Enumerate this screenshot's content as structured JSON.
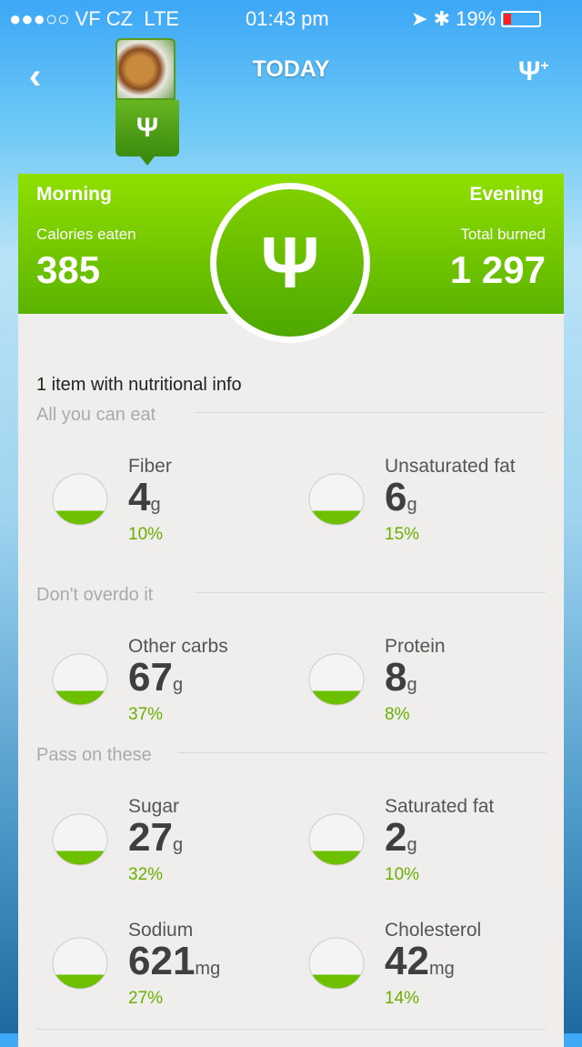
{
  "status": {
    "signal": "●●●○○ VF CZ",
    "network": "LTE",
    "time": "01:43 pm",
    "battery": "19%"
  },
  "nav": {
    "title": "TODAY",
    "back_icon": "chevron-left-icon",
    "add_meal_icon": "fork-knife-plus-icon"
  },
  "summary": {
    "left_label": "Morning",
    "right_label": "Evening",
    "calories_label": "Calories eaten",
    "calories": "385",
    "burned_label": "Total burned",
    "burned": "1 297"
  },
  "main": {
    "item_count": "1 item with nutritional info",
    "sections": [
      {
        "label": "All you can eat"
      },
      {
        "label": "Don't overdo it"
      },
      {
        "label": "Pass on these"
      }
    ],
    "nutrients": [
      {
        "name": "Fiber",
        "value": "4",
        "unit": "g",
        "pct": "10%",
        "icon": "apple-icon"
      },
      {
        "name": "Unsaturated fat",
        "value": "6",
        "unit": "g",
        "pct": "15%",
        "icon": "oil-drops-icon"
      },
      {
        "name": "Other carbs",
        "value": "67",
        "unit": "g",
        "pct": "37%",
        "icon": "bread-slices-icon"
      },
      {
        "name": "Protein",
        "value": "8",
        "unit": "g",
        "pct": "8%",
        "icon": "steak-icon"
      },
      {
        "name": "Sugar",
        "value": "27",
        "unit": "g",
        "pct": "32%",
        "icon": "sugar-cubes-icon"
      },
      {
        "name": "Saturated fat",
        "value": "2",
        "unit": "g",
        "pct": "10%",
        "icon": "butter-icon"
      },
      {
        "name": "Sodium",
        "value": "621",
        "unit": "mg",
        "pct": "27%",
        "icon": "salt-shaker-icon"
      },
      {
        "name": "Cholesterol",
        "value": "42",
        "unit": "mg",
        "pct": "14%",
        "icon": "eggs-icon"
      }
    ]
  },
  "colors": {
    "accent": "#7fd000",
    "pct": "#6aaf00"
  }
}
